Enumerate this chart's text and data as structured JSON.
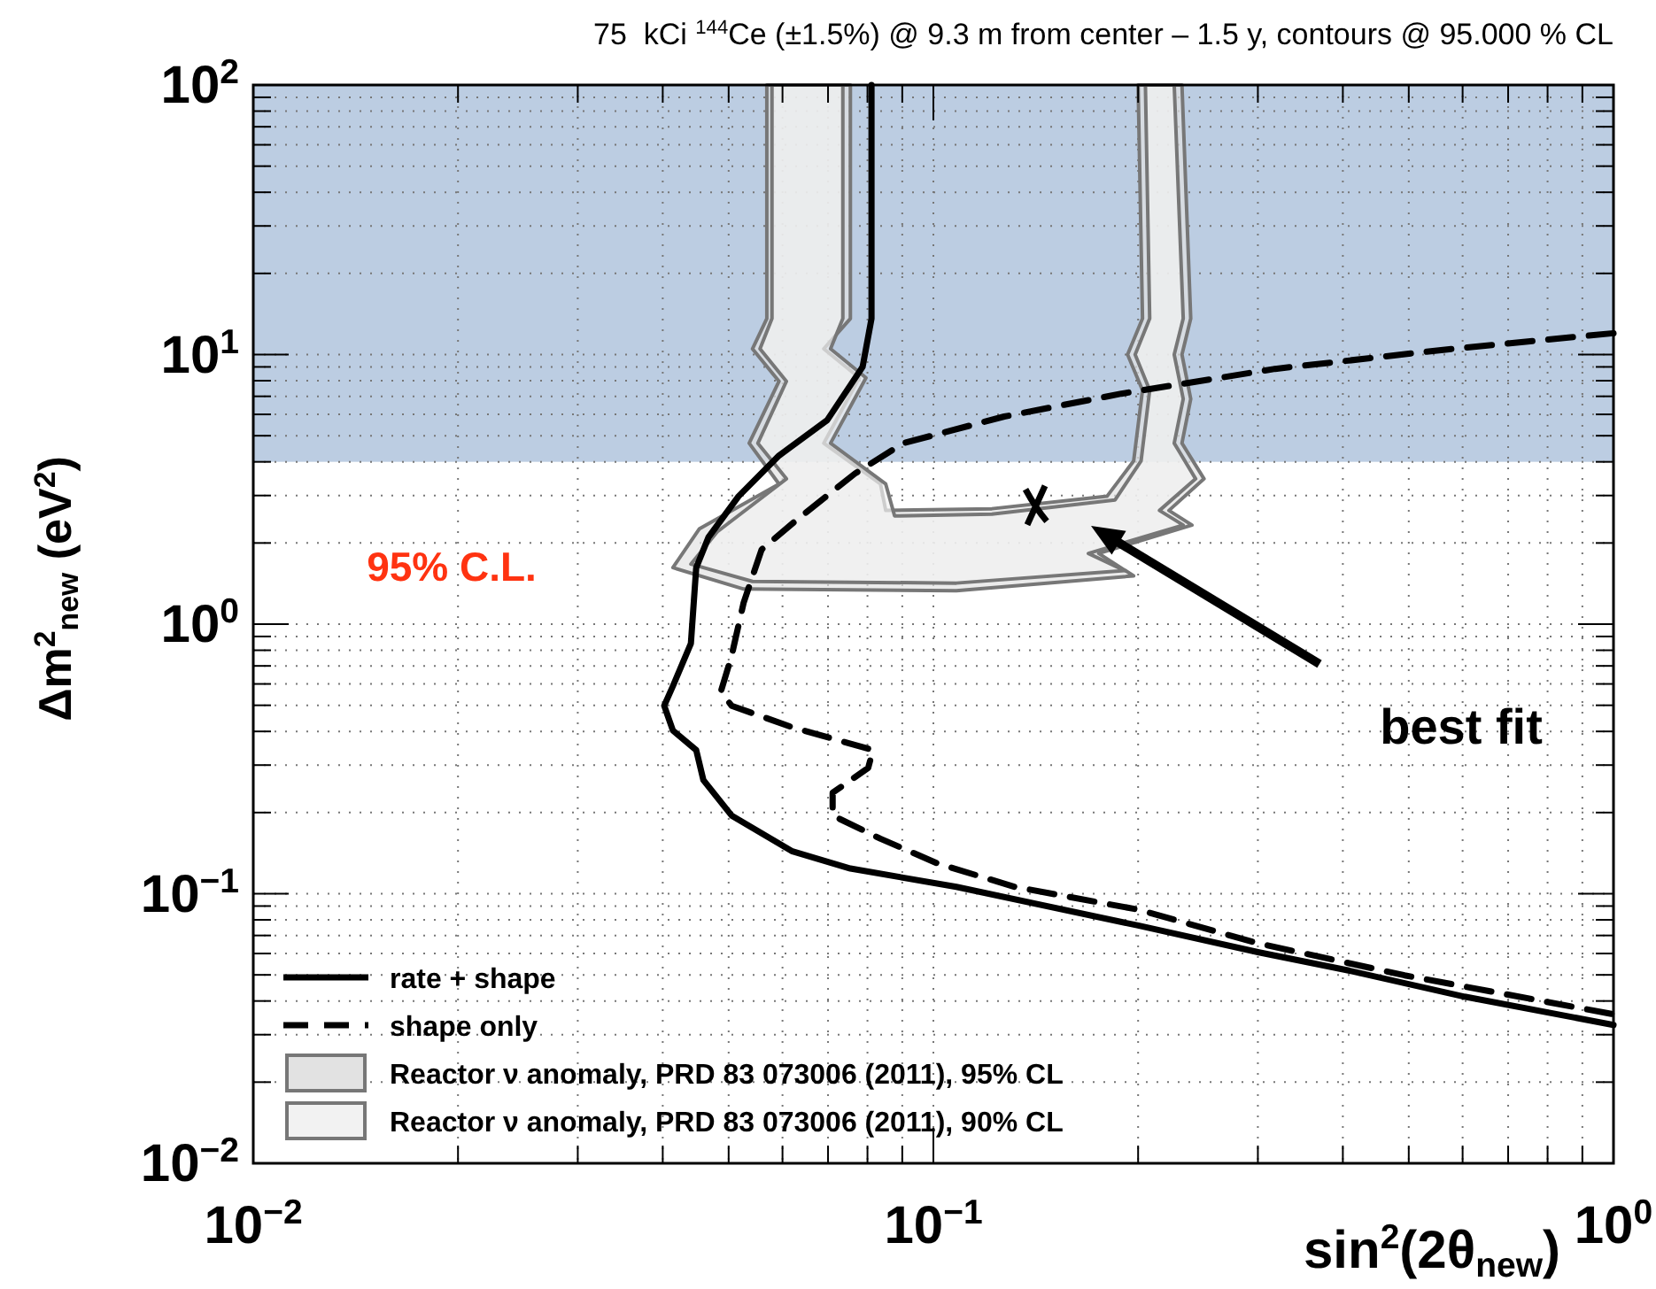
{
  "chart_data": {
    "type": "line",
    "title": "75  kCi $^{144}$Ce (±1.5%) @ 9.3 m from center – 1.5 y, contours @ 95.000 % CL",
    "xlabel": "sin$^{2}$(2θ$_{new}$)",
    "ylabel": "Δm$^{2}$$_{new}$ (eV$^{2}$)",
    "log": "xy",
    "grid": true,
    "legend": "bottom left",
    "xlim": [
      0.01,
      1
    ],
    "ylim": [
      0.01,
      100
    ],
    "xticks": [
      {
        "value": 0.01,
        "label": "10$^{−2}$"
      },
      {
        "value": 0.02,
        "label": null
      },
      {
        "value": 0.03,
        "label": null
      },
      {
        "value": 0.04,
        "label": null
      },
      {
        "value": 0.05,
        "label": null
      },
      {
        "value": 0.06,
        "label": null
      },
      {
        "value": 0.07,
        "label": null
      },
      {
        "value": 0.08,
        "label": null
      },
      {
        "value": 0.09,
        "label": null
      },
      {
        "value": 0.1,
        "label": "10$^{−1}$"
      },
      {
        "value": 0.2,
        "label": null
      },
      {
        "value": 0.3,
        "label": null
      },
      {
        "value": 0.4,
        "label": null
      },
      {
        "value": 0.5,
        "label": null
      },
      {
        "value": 0.6,
        "label": null
      },
      {
        "value": 0.7,
        "label": null
      },
      {
        "value": 0.8,
        "label": null
      },
      {
        "value": 0.9,
        "label": null
      },
      {
        "value": 1,
        "label": "10$^{0}$"
      }
    ],
    "yticks": [
      {
        "value": 0.01,
        "label": "10$^{−2}$"
      },
      {
        "value": 0.02,
        "label": null
      },
      {
        "value": 0.03,
        "label": null
      },
      {
        "value": 0.04,
        "label": null
      },
      {
        "value": 0.05,
        "label": null
      },
      {
        "value": 0.06,
        "label": null
      },
      {
        "value": 0.07,
        "label": null
      },
      {
        "value": 0.08,
        "label": null
      },
      {
        "value": 0.09,
        "label": null
      },
      {
        "value": 0.1,
        "label": "10$^{−1}$"
      },
      {
        "value": 0.2,
        "label": null
      },
      {
        "value": 0.3,
        "label": null
      },
      {
        "value": 0.4,
        "label": null
      },
      {
        "value": 0.5,
        "label": null
      },
      {
        "value": 0.6,
        "label": null
      },
      {
        "value": 0.7,
        "label": null
      },
      {
        "value": 0.8,
        "label": null
      },
      {
        "value": 0.9,
        "label": null
      },
      {
        "value": 1,
        "label": "10$^{0}$"
      },
      {
        "value": 2,
        "label": null
      },
      {
        "value": 3,
        "label": null
      },
      {
        "value": 4,
        "label": null
      },
      {
        "value": 5,
        "label": null
      },
      {
        "value": 6,
        "label": null
      },
      {
        "value": 7,
        "label": null
      },
      {
        "value": 8,
        "label": null
      },
      {
        "value": 9,
        "label": null
      },
      {
        "value": 10,
        "label": "10$^{1}$"
      },
      {
        "value": 20,
        "label": null
      },
      {
        "value": 30,
        "label": null
      },
      {
        "value": 40,
        "label": null
      },
      {
        "value": 50,
        "label": null
      },
      {
        "value": 60,
        "label": null
      },
      {
        "value": 70,
        "label": null
      },
      {
        "value": 80,
        "label": null
      },
      {
        "value": 90,
        "label": null
      },
      {
        "value": 100,
        "label": "10$^{2}$"
      }
    ],
    "bands": [
      {
        "axis": "y",
        "from": 4,
        "to": 100,
        "color": "#bccde2"
      }
    ],
    "series": [
      {
        "name": "Reactor ν anomaly, PRD 83 073006 (2011), 95% CL",
        "type": "area",
        "color": "#e2e2e2",
        "x": [
          0.0569,
          0.0569,
          0.0542,
          0.0593,
          0.0536,
          0.0593,
          0.0453,
          0.0414,
          0.0526,
          0.1081,
          0.197,
          0.175,
          0.24,
          0.222,
          0.25,
          0.232,
          0.239,
          0.232,
          0.239,
          0.232,
          0.2,
          0.203,
          0.193,
          0.203,
          0.197,
          0.18,
          0.1219,
          0.0851,
          0.0836,
          0.069,
          0.0778,
          0.069,
          0.0755,
          0.0755
        ],
        "values": [
          100,
          13.6,
          10.5,
          7.96,
          4.69,
          3.31,
          2.26,
          1.62,
          1.35,
          1.33,
          1.51,
          1.83,
          2.33,
          2.64,
          3.46,
          4.69,
          6.85,
          10,
          13.6,
          100,
          100,
          13.6,
          10,
          7.38,
          4.03,
          2.98,
          2.68,
          2.64,
          3.31,
          4.69,
          8.2,
          10.5,
          13.6,
          100
        ]
      },
      {
        "name": "Reactor ν anomaly, PRD 83 073006 (2011), 90% CL",
        "type": "area",
        "color": "#f2f2f2",
        "x": [
          0.0579,
          0.0579,
          0.0556,
          0.0608,
          0.0552,
          0.0608,
          0.0481,
          0.044,
          0.0542,
          0.1081,
          0.191,
          0.169,
          0.233,
          0.215,
          0.243,
          0.226,
          0.233,
          0.226,
          0.233,
          0.226,
          0.205,
          0.208,
          0.198,
          0.208,
          0.202,
          0.185,
          0.1219,
          0.0877,
          0.0851,
          0.0706,
          0.0796,
          0.0706,
          0.0736,
          0.0736
        ],
        "values": [
          100,
          13.6,
          10.5,
          7.96,
          4.69,
          3.46,
          2.2,
          1.67,
          1.44,
          1.42,
          1.58,
          1.83,
          2.33,
          2.64,
          3.46,
          4.69,
          6.85,
          10,
          13.6,
          100,
          100,
          13.6,
          10,
          7.38,
          4.03,
          2.89,
          2.56,
          2.52,
          3.31,
          4.69,
          8.2,
          10.5,
          13.6,
          100
        ]
      },
      {
        "name": "rate + shape",
        "color": "#000000",
        "line_style": "solid",
        "x": [
          0.0811,
          0.0811,
          0.0787,
          0.0698,
          0.0593,
          0.0517,
          0.0467,
          0.0448,
          0.044,
          0.0414,
          0.0402,
          0.0414,
          0.0448,
          0.0459,
          0.0505,
          0.0619,
          0.0755,
          0.1081,
          0.2,
          0.3,
          0.405,
          0.604,
          1
        ],
        "values": [
          100,
          13.6,
          9,
          5.71,
          4.22,
          2.98,
          2.1,
          1.62,
          0.848,
          0.589,
          0.498,
          0.403,
          0.341,
          0.264,
          0.195,
          0.144,
          0.124,
          0.106,
          0.0762,
          0.0607,
          0.0521,
          0.0415,
          0.0326
        ]
      },
      {
        "name": "shape only",
        "color": "#000000",
        "line_style": "dashed",
        "x": [
          1,
          0.579,
          0.318,
          0.189,
          0.1271,
          0.0903,
          0.0767,
          0.063,
          0.0559,
          0.0526,
          0.0505,
          0.0487,
          0.0505,
          0.0619,
          0.0815,
          0.0802,
          0.0711,
          0.0711,
          0.0836,
          0.1018,
          0.1318,
          0.2,
          0.3,
          0.493,
          1
        ],
        "values": [
          12,
          10.5,
          8.85,
          7.16,
          5.89,
          4.69,
          3.62,
          2.44,
          1.89,
          1.2,
          0.762,
          0.562,
          0.498,
          0.415,
          0.341,
          0.293,
          0.237,
          0.195,
          0.16,
          0.129,
          0.106,
          0.0873,
          0.0655,
          0.0498,
          0.0357
        ]
      },
      {
        "type": "scatter",
        "marker": "cross",
        "color": "#000000",
        "x": [
          0.1416
        ],
        "values": [
          2.76
        ]
      }
    ],
    "annotations": [
      "95% C.L.",
      "best fit"
    ]
  }
}
